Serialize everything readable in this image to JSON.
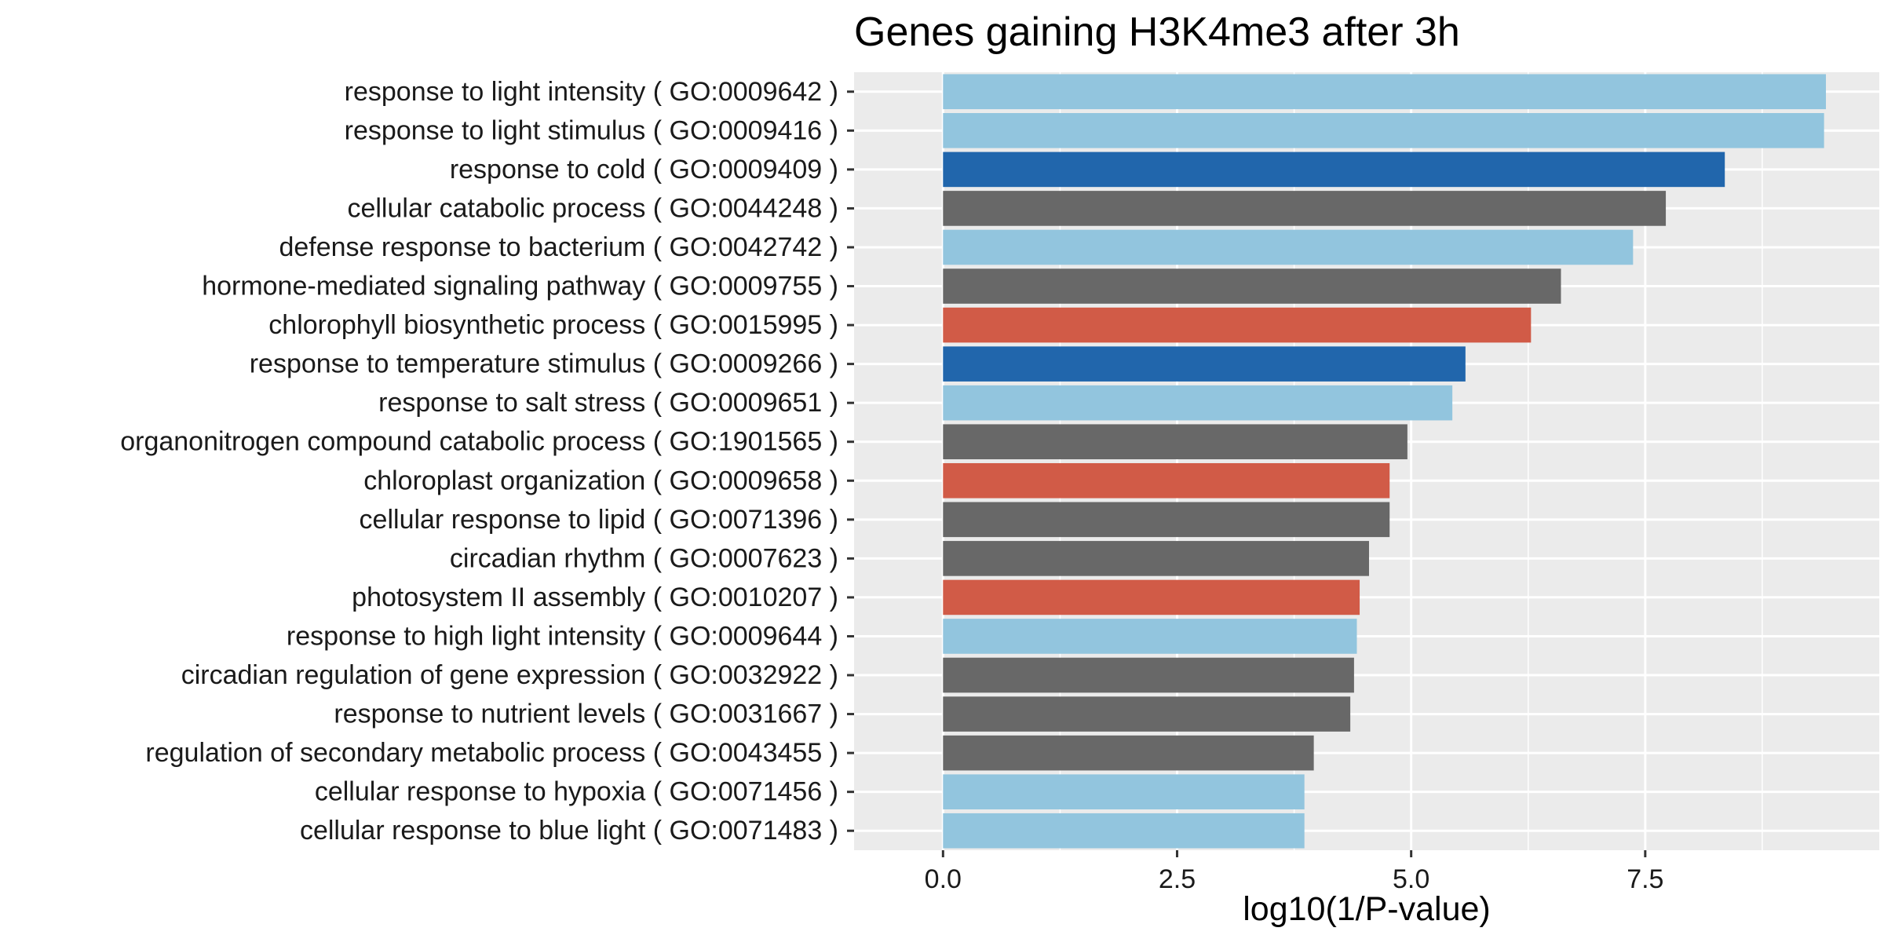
{
  "chart_data": {
    "type": "bar",
    "orientation": "horizontal",
    "title": "Genes gaining H3K4me3 after 3h",
    "xlabel": "log10(1/P-value)",
    "ylabel": "",
    "xlim": [
      -0.95,
      10.0
    ],
    "xticks": [
      {
        "value": 0.0,
        "label": "0.0"
      },
      {
        "value": 2.5,
        "label": "2.5"
      },
      {
        "value": 5.0,
        "label": "5.0"
      },
      {
        "value": 7.5,
        "label": "7.5"
      }
    ],
    "grid": true,
    "legend": "none",
    "category_colors": {
      "light_blue": "#92C5DE",
      "dark_blue": "#2166AC",
      "gray": "#686868",
      "red": "#D15B47"
    },
    "categories": [
      "response to light intensity ( GO:0009642 )",
      "response to light stimulus ( GO:0009416 )",
      "response to cold ( GO:0009409 )",
      "cellular catabolic process ( GO:0044248 )",
      "defense response to bacterium ( GO:0042742 )",
      "hormone-mediated signaling pathway ( GO:0009755 )",
      "chlorophyll biosynthetic process ( GO:0015995 )",
      "response to temperature stimulus ( GO:0009266 )",
      "response to salt stress ( GO:0009651 )",
      "organonitrogen compound catabolic process ( GO:1901565 )",
      "chloroplast organization ( GO:0009658 )",
      "cellular response to lipid ( GO:0071396 )",
      "circadian rhythm ( GO:0007623 )",
      "photosystem II assembly ( GO:0010207 )",
      "response to high light intensity ( GO:0009644 )",
      "circadian regulation of gene expression ( GO:0032922 )",
      "response to nutrient levels ( GO:0031667 )",
      "regulation of secondary metabolic process ( GO:0043455 )",
      "cellular response to hypoxia ( GO:0071456 )",
      "cellular response to blue light ( GO:0071483 )"
    ],
    "values": [
      9.43,
      9.41,
      8.35,
      7.72,
      7.37,
      6.6,
      6.28,
      5.58,
      5.44,
      4.96,
      4.77,
      4.77,
      4.55,
      4.45,
      4.42,
      4.39,
      4.35,
      3.96,
      3.86,
      3.86
    ],
    "colors": [
      "#92C5DE",
      "#92C5DE",
      "#2166AC",
      "#686868",
      "#92C5DE",
      "#686868",
      "#D15B47",
      "#2166AC",
      "#92C5DE",
      "#686868",
      "#D15B47",
      "#686868",
      "#686868",
      "#D15B47",
      "#92C5DE",
      "#686868",
      "#686868",
      "#686868",
      "#92C5DE",
      "#92C5DE"
    ],
    "panel_background": "#EBEBEB",
    "gridline_color": "#FFFFFF"
  }
}
